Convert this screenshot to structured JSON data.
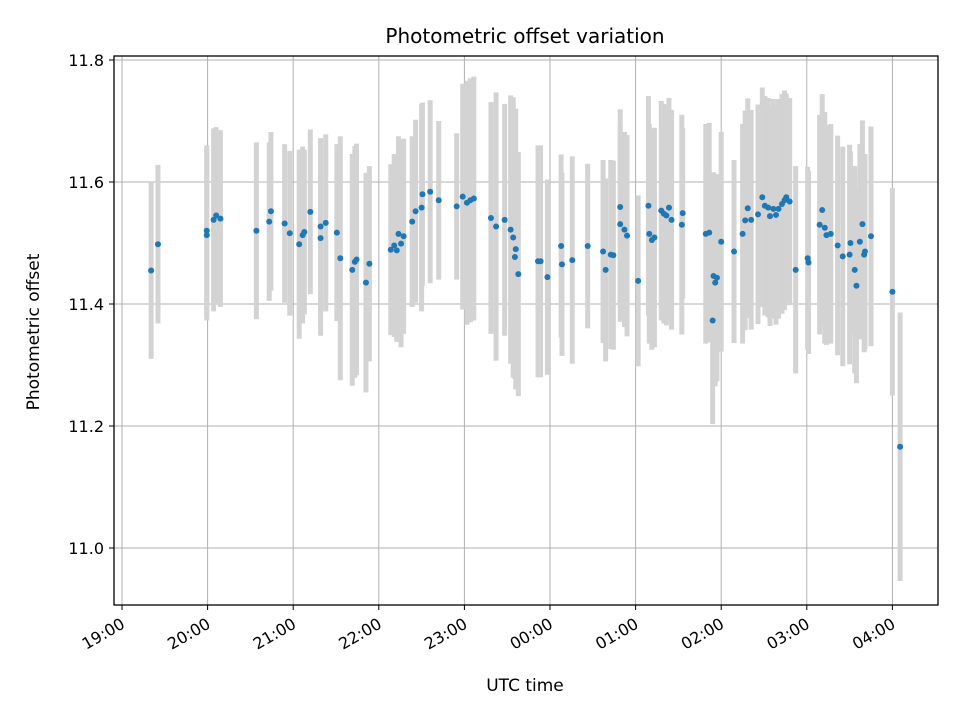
{
  "chart_data": {
    "type": "scatter",
    "title": "Photometric offset variation",
    "xlabel": "UTC time",
    "ylabel": "Photometric offset",
    "grid": true,
    "x_tick_labels": [
      "19:00",
      "20:00",
      "21:00",
      "22:00",
      "23:00",
      "00:00",
      "01:00",
      "02:00",
      "03:00",
      "04:00"
    ],
    "y_tick_labels": [
      "11.0",
      "11.2",
      "11.4",
      "11.6",
      "11.8"
    ],
    "x_unit": "hours since 19:00 UTC",
    "xlim": [
      -0.1,
      9.5
    ],
    "ylim": [
      10.9,
      11.81
    ],
    "colors": {
      "point": "#1f77b4",
      "errorbar": "#d3d3d3",
      "grid": "#b0b0b0"
    },
    "points": [
      [
        0.34,
        11.455,
        0.145
      ],
      [
        0.42,
        11.498,
        0.13
      ],
      [
        0.99,
        11.52,
        0.14
      ],
      [
        0.99,
        11.513,
        0.14
      ],
      [
        1.07,
        11.538,
        0.15
      ],
      [
        1.1,
        11.545,
        0.145
      ],
      [
        1.15,
        11.54,
        0.145
      ],
      [
        1.57,
        11.52,
        0.145
      ],
      [
        1.72,
        11.535,
        0.13
      ],
      [
        1.74,
        11.552,
        0.13
      ],
      [
        1.9,
        11.532,
        0.13
      ],
      [
        1.96,
        11.516,
        0.135
      ],
      [
        2.07,
        11.498,
        0.155
      ],
      [
        2.11,
        11.513,
        0.145
      ],
      [
        2.13,
        11.518,
        0.135
      ],
      [
        2.2,
        11.551,
        0.135
      ],
      [
        2.32,
        11.508,
        0.16
      ],
      [
        2.32,
        11.527,
        0.145
      ],
      [
        2.38,
        11.533,
        0.145
      ],
      [
        2.51,
        11.517,
        0.145
      ],
      [
        2.55,
        11.475,
        0.2
      ],
      [
        2.69,
        11.456,
        0.19
      ],
      [
        2.72,
        11.469,
        0.19
      ],
      [
        2.74,
        11.473,
        0.19
      ],
      [
        2.85,
        11.435,
        0.18
      ],
      [
        2.89,
        11.466,
        0.16
      ],
      [
        3.14,
        11.489,
        0.14
      ],
      [
        3.18,
        11.496,
        0.15
      ],
      [
        3.21,
        11.488,
        0.15
      ],
      [
        3.23,
        11.515,
        0.16
      ],
      [
        3.26,
        11.499,
        0.17
      ],
      [
        3.29,
        11.511,
        0.16
      ],
      [
        3.39,
        11.535,
        0.14
      ],
      [
        3.43,
        11.552,
        0.15
      ],
      [
        3.5,
        11.558,
        0.17
      ],
      [
        3.51,
        11.58,
        0.15
      ],
      [
        3.6,
        11.584,
        0.15
      ],
      [
        3.7,
        11.57,
        0.13
      ],
      [
        3.91,
        11.56,
        0.12
      ],
      [
        3.98,
        11.576,
        0.185
      ],
      [
        4.03,
        11.566,
        0.2
      ],
      [
        4.07,
        11.57,
        0.2
      ],
      [
        4.11,
        11.573,
        0.2
      ],
      [
        4.31,
        11.541,
        0.19
      ],
      [
        4.37,
        11.527,
        0.22
      ],
      [
        4.47,
        11.538,
        0.19
      ],
      [
        4.54,
        11.522,
        0.22
      ],
      [
        4.57,
        11.509,
        0.23
      ],
      [
        4.59,
        11.477,
        0.2
      ],
      [
        4.6,
        11.49,
        0.23
      ],
      [
        4.63,
        11.449,
        0.2
      ],
      [
        4.86,
        11.47,
        0.19
      ],
      [
        4.89,
        11.47,
        0.19
      ],
      [
        4.97,
        11.444,
        0.16
      ],
      [
        5.13,
        11.495,
        0.15
      ],
      [
        5.14,
        11.465,
        0.15
      ],
      [
        5.26,
        11.472,
        0.17
      ],
      [
        5.44,
        11.495,
        0.135
      ],
      [
        5.62,
        11.486,
        0.15
      ],
      [
        5.65,
        11.456,
        0.15
      ],
      [
        5.71,
        11.481,
        0.155
      ],
      [
        5.74,
        11.48,
        0.155
      ],
      [
        5.82,
        11.559,
        0.16
      ],
      [
        5.82,
        11.531,
        0.16
      ],
      [
        5.87,
        11.522,
        0.16
      ],
      [
        5.9,
        11.512,
        0.165
      ],
      [
        6.03,
        11.438,
        0.14
      ],
      [
        6.15,
        11.561,
        0.18
      ],
      [
        6.16,
        11.515,
        0.18
      ],
      [
        6.19,
        11.505,
        0.18
      ],
      [
        6.22,
        11.509,
        0.18
      ],
      [
        6.3,
        11.553,
        0.18
      ],
      [
        6.33,
        11.548,
        0.18
      ],
      [
        6.36,
        11.545,
        0.18
      ],
      [
        6.39,
        11.558,
        0.18
      ],
      [
        6.42,
        11.538,
        0.18
      ],
      [
        6.54,
        11.53,
        0.18
      ],
      [
        6.55,
        11.549,
        0.14
      ],
      [
        6.82,
        11.515,
        0.18
      ],
      [
        6.86,
        11.517,
        0.18
      ],
      [
        6.9,
        11.373,
        0.17
      ],
      [
        6.91,
        11.446,
        0.17
      ],
      [
        6.93,
        11.435,
        0.17
      ],
      [
        6.95,
        11.443,
        0.17
      ],
      [
        7.0,
        11.502,
        0.18
      ],
      [
        7.15,
        11.486,
        0.15
      ],
      [
        7.25,
        11.515,
        0.18
      ],
      [
        7.28,
        11.537,
        0.18
      ],
      [
        7.31,
        11.557,
        0.18
      ],
      [
        7.35,
        11.538,
        0.18
      ],
      [
        7.43,
        11.547,
        0.18
      ],
      [
        7.48,
        11.575,
        0.18
      ],
      [
        7.51,
        11.561,
        0.18
      ],
      [
        7.55,
        11.558,
        0.18
      ],
      [
        7.57,
        11.544,
        0.18
      ],
      [
        7.61,
        11.556,
        0.18
      ],
      [
        7.64,
        11.546,
        0.18
      ],
      [
        7.67,
        11.556,
        0.18
      ],
      [
        7.71,
        11.564,
        0.18
      ],
      [
        7.74,
        11.57,
        0.18
      ],
      [
        7.76,
        11.575,
        0.17
      ],
      [
        7.8,
        11.568,
        0.17
      ],
      [
        7.87,
        11.456,
        0.17
      ],
      [
        8.01,
        11.475,
        0.15
      ],
      [
        8.02,
        11.468,
        0.15
      ],
      [
        8.15,
        11.53,
        0.18
      ],
      [
        8.18,
        11.554,
        0.19
      ],
      [
        8.21,
        11.525,
        0.19
      ],
      [
        8.23,
        11.513,
        0.18
      ],
      [
        8.28,
        11.515,
        0.18
      ],
      [
        8.36,
        11.496,
        0.18
      ],
      [
        8.42,
        11.478,
        0.18
      ],
      [
        8.5,
        11.481,
        0.18
      ],
      [
        8.51,
        11.5,
        0.15
      ],
      [
        8.56,
        11.456,
        0.17
      ],
      [
        8.58,
        11.43,
        0.16
      ],
      [
        8.62,
        11.502,
        0.16
      ],
      [
        8.65,
        11.531,
        0.17
      ],
      [
        8.67,
        11.481,
        0.16
      ],
      [
        8.68,
        11.486,
        0.16
      ],
      [
        8.75,
        11.511,
        0.18
      ],
      [
        9.0,
        11.42,
        0.17
      ],
      [
        9.09,
        11.166,
        0.22
      ]
    ]
  }
}
